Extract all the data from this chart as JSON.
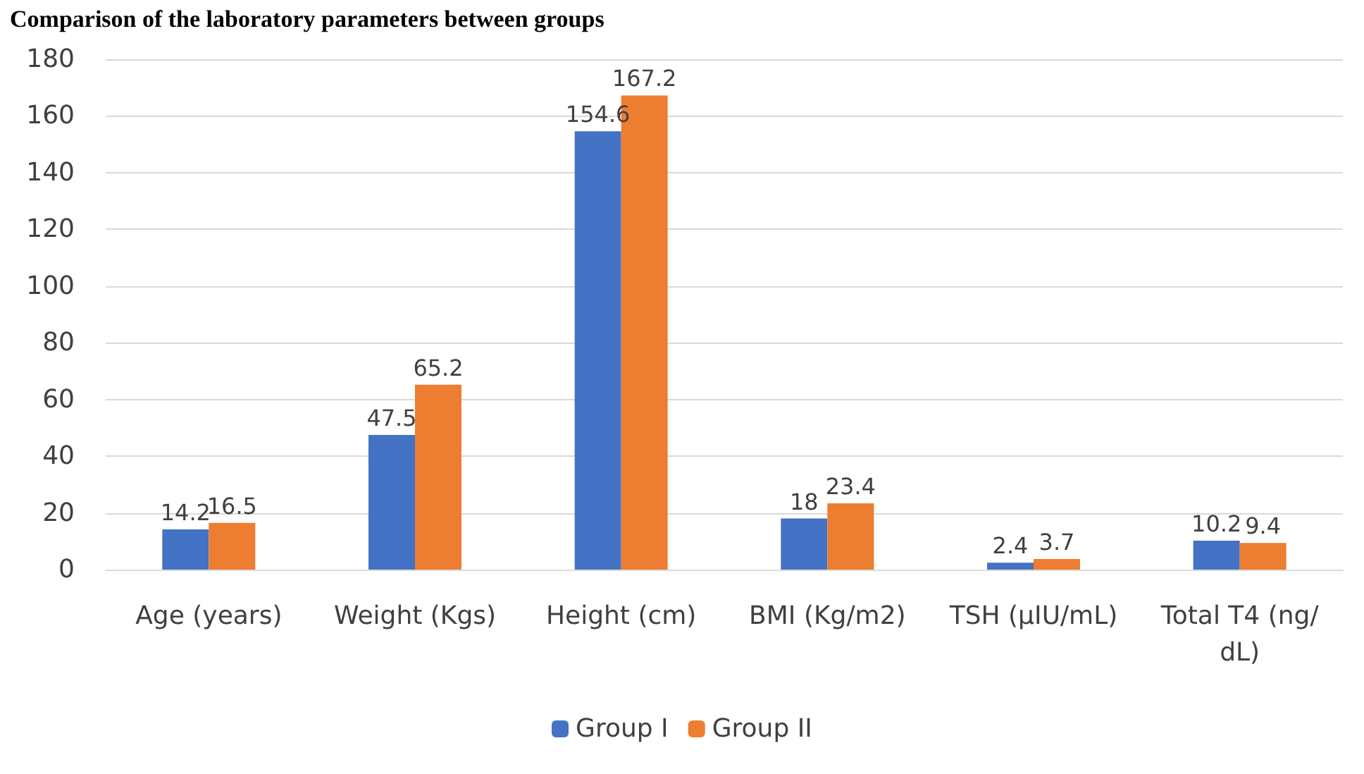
{
  "chart_data": {
    "type": "bar",
    "title": "Comparison of the laboratory parameters between groups",
    "categories": [
      "Age (years)",
      "Weight (Kgs)",
      "Height (cm)",
      "BMI (Kg/m2)",
      "TSH (µIU/mL)",
      "Total T4 (ng/dL)"
    ],
    "series": [
      {
        "name": "Group I",
        "color": "#4472c4",
        "values": [
          14.2,
          47.5,
          154.6,
          18,
          2.4,
          10.2
        ]
      },
      {
        "name": "Group II",
        "color": "#ed7d31",
        "values": [
          16.5,
          65.2,
          167.2,
          23.4,
          3.7,
          9.4
        ]
      }
    ],
    "ylim": [
      0,
      180
    ],
    "yticks": [
      0,
      20,
      40,
      60,
      80,
      100,
      120,
      140,
      160,
      180
    ],
    "grid": "y",
    "legend": "bottom",
    "data_labels": true
  }
}
